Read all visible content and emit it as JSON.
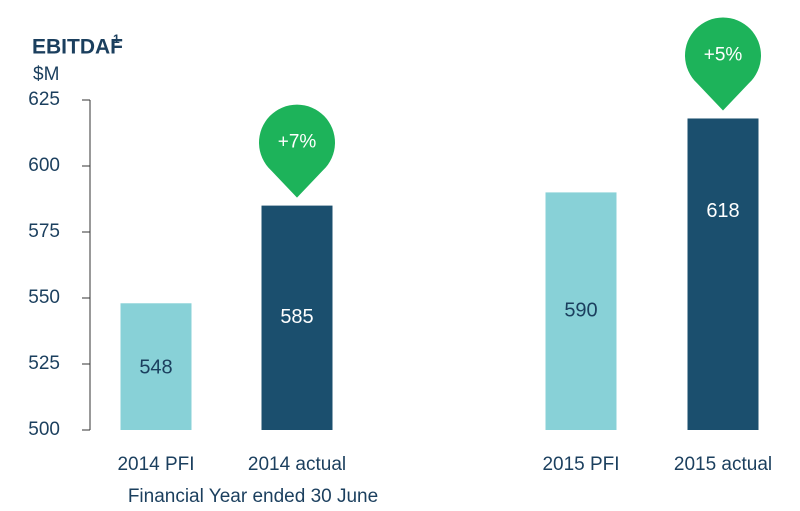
{
  "chart_data": {
    "type": "bar",
    "title": "EBITDAF",
    "title_footnote": "1",
    "y_label": "$M",
    "x_label": "Financial Year ended 30 June",
    "categories": [
      "2014 PFI",
      "2014 actual",
      "2015 PFI",
      "2015 actual"
    ],
    "values": [
      548,
      585,
      590,
      618
    ],
    "colors": [
      "#88d1d7",
      "#1b4f6e",
      "#88d1d7",
      "#1b4f6e"
    ],
    "annotations": [
      "+7%",
      "+5%"
    ],
    "ylim": [
      500,
      625
    ],
    "yticks": [
      500,
      525,
      550,
      575,
      600,
      625
    ]
  }
}
